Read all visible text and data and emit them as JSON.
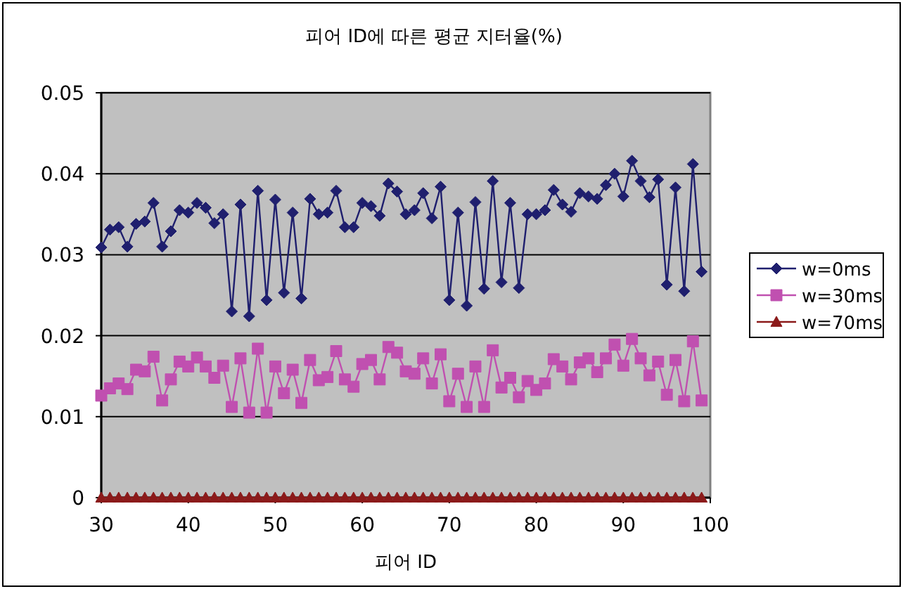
{
  "chart_data": {
    "type": "line",
    "title": "피어 ID에 따른 평균 지터율(%)",
    "xlabel": "피어 ID",
    "x": [
      30,
      31,
      32,
      33,
      34,
      35,
      36,
      37,
      38,
      39,
      40,
      41,
      42,
      43,
      44,
      45,
      46,
      47,
      48,
      49,
      50,
      51,
      52,
      53,
      54,
      55,
      56,
      57,
      58,
      59,
      60,
      61,
      62,
      63,
      64,
      65,
      66,
      67,
      68,
      69,
      70,
      71,
      72,
      73,
      74,
      75,
      76,
      77,
      78,
      79,
      80,
      81,
      82,
      83,
      84,
      85,
      86,
      87,
      88,
      89,
      90,
      91,
      92,
      93,
      94,
      95,
      96,
      97,
      98,
      99
    ],
    "series": [
      {
        "name": "w=0ms",
        "color": "#1f1f6e",
        "marker": "diamond",
        "values": [
          0.0309,
          0.0331,
          0.0334,
          0.031,
          0.0338,
          0.0341,
          0.0364,
          0.031,
          0.0329,
          0.0355,
          0.0352,
          0.0364,
          0.0358,
          0.0339,
          0.035,
          0.023,
          0.0362,
          0.0224,
          0.0379,
          0.0244,
          0.0368,
          0.0253,
          0.0352,
          0.0246,
          0.0369,
          0.035,
          0.0352,
          0.0379,
          0.0334,
          0.0334,
          0.0364,
          0.036,
          0.0348,
          0.0388,
          0.0378,
          0.035,
          0.0355,
          0.0376,
          0.0345,
          0.0384,
          0.0244,
          0.0352,
          0.0237,
          0.0365,
          0.0258,
          0.0391,
          0.0266,
          0.0364,
          0.0259,
          0.035,
          0.035,
          0.0355,
          0.038,
          0.0362,
          0.0353,
          0.0376,
          0.0372,
          0.0369,
          0.0386,
          0.04,
          0.0372,
          0.0416,
          0.0391,
          0.0371,
          0.0393,
          0.0263,
          0.0383,
          0.0255,
          0.0412,
          0.0279
        ]
      },
      {
        "name": "w=30ms",
        "color": "#c050b0",
        "marker": "square",
        "values": [
          0.0126,
          0.0135,
          0.0141,
          0.0134,
          0.0158,
          0.0156,
          0.0174,
          0.012,
          0.0146,
          0.0168,
          0.0162,
          0.0173,
          0.0162,
          0.0148,
          0.0163,
          0.0112,
          0.0172,
          0.0105,
          0.0184,
          0.0105,
          0.0162,
          0.0129,
          0.0158,
          0.0117,
          0.017,
          0.0145,
          0.0149,
          0.0181,
          0.0146,
          0.0137,
          0.0165,
          0.017,
          0.0146,
          0.0186,
          0.0179,
          0.0156,
          0.0153,
          0.0172,
          0.0141,
          0.0177,
          0.0119,
          0.0153,
          0.0112,
          0.0162,
          0.0112,
          0.0182,
          0.0136,
          0.0148,
          0.0124,
          0.0144,
          0.0133,
          0.0141,
          0.0171,
          0.0162,
          0.0146,
          0.0167,
          0.0172,
          0.0155,
          0.0172,
          0.0189,
          0.0163,
          0.0196,
          0.0172,
          0.0151,
          0.0168,
          0.0127,
          0.017,
          0.0119,
          0.0193,
          0.012
        ]
      },
      {
        "name": "w=70ms",
        "color": "#8b1a1a",
        "marker": "triangle",
        "values": [
          0,
          0,
          0,
          0,
          0,
          0,
          0,
          0,
          0,
          0,
          0,
          0,
          0,
          0,
          0,
          0,
          0,
          0,
          0,
          0,
          0,
          0,
          0,
          0,
          0,
          0,
          0,
          0,
          0,
          0,
          0,
          0,
          0,
          0,
          0,
          0,
          0,
          0,
          0,
          0,
          0,
          0,
          0,
          0,
          0,
          0,
          0,
          0,
          0,
          0,
          0,
          0,
          0,
          0,
          0,
          0,
          0,
          0,
          0,
          0,
          0,
          0,
          0,
          0,
          0,
          0,
          0,
          0,
          0,
          0
        ]
      }
    ],
    "xlim": [
      30,
      100
    ],
    "xticks": [
      30,
      40,
      50,
      60,
      70,
      80,
      90,
      100
    ],
    "ylim": [
      0,
      0.05
    ],
    "yticks": [
      0,
      0.01,
      0.02,
      0.03,
      0.04,
      0.05
    ],
    "grid": "y",
    "legend": "right"
  }
}
